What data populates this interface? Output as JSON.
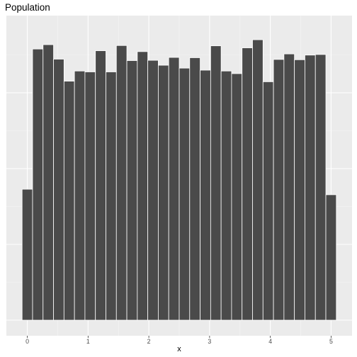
{
  "chart_data": {
    "type": "bar",
    "subtype": "histogram",
    "title": "Population",
    "xlabel": "x",
    "ylabel": "",
    "bin_width": 0.1724,
    "x_range": [
      -0.0862,
      5.0862
    ],
    "xlim": [
      -0.345,
      5.345
    ],
    "ylim": [
      0,
      1
    ],
    "x_ticks": [
      0,
      1,
      2,
      3,
      4,
      5
    ],
    "x_tick_labels": [
      "0",
      "1",
      "2",
      "3",
      "4",
      "5"
    ],
    "y_ticks_labeled": false,
    "grid": true,
    "legend": "none",
    "bar_color": "#4a4a4a",
    "bar_outline": "#ffffff",
    "panel_color": "#ebebeb",
    "relative_heights": [
      0.452,
      0.936,
      0.951,
      0.901,
      0.825,
      0.86,
      0.857,
      0.93,
      0.857,
      0.948,
      0.896,
      0.927,
      0.897,
      0.88,
      0.907,
      0.87,
      0.906,
      0.863,
      0.947,
      0.86,
      0.851,
      0.94,
      0.968,
      0.823,
      0.9,
      0.919,
      0.899,
      0.915,
      0.917,
      0.433
    ]
  }
}
